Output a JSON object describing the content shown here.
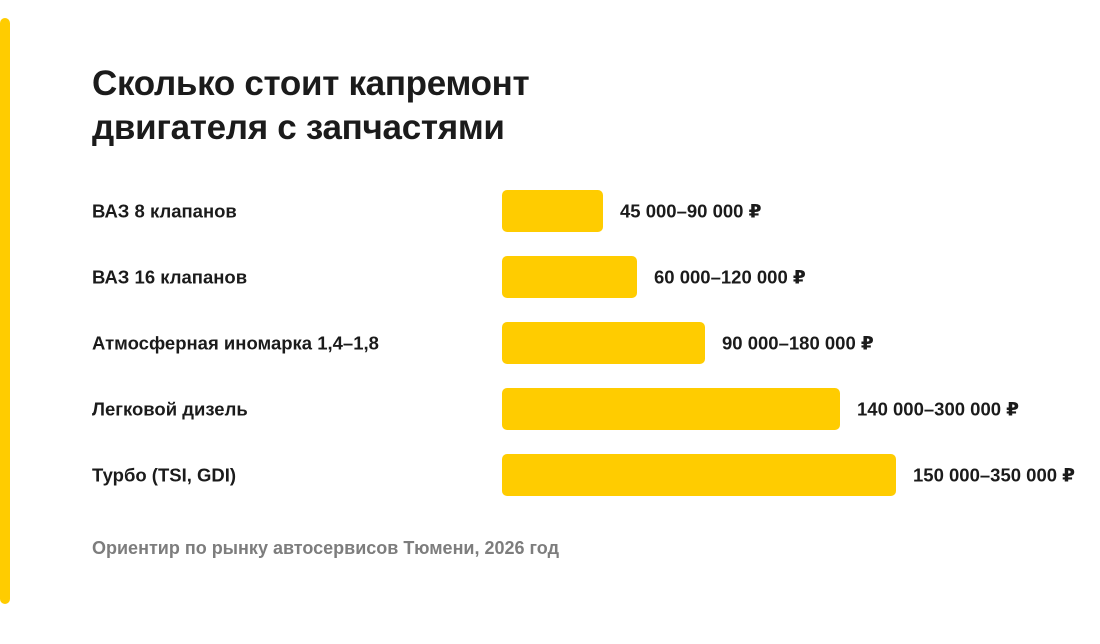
{
  "colors": {
    "accent": "#FFCC00",
    "bar": "#FFCC00",
    "text": "#1B1B1B",
    "muted": "#7D7D7D"
  },
  "title_lines": [
    "Сколько стоит капремонт",
    "двигателя с запчастями"
  ],
  "footnote": "Ориентир по рынку автосервисов Тюмени, 2026 год",
  "chart_data": {
    "type": "bar",
    "orientation": "horizontal",
    "title": "Сколько стоит капремонт двигателя с запчастями",
    "xlabel": "",
    "ylabel": "",
    "grid": false,
    "legend": "none",
    "xlim": [
      0,
      350000
    ],
    "categories": [
      "ВАЗ 8 клапанов",
      "ВАЗ 16 клапанов",
      "Атмосферная иномарка 1,4–1,8",
      "Легковой дизель",
      "Турбо (TSI, GDI)"
    ],
    "ranges": [
      [
        45000,
        90000
      ],
      [
        60000,
        120000
      ],
      [
        90000,
        180000
      ],
      [
        140000,
        300000
      ],
      [
        150000,
        350000
      ]
    ],
    "values": [
      90000,
      120000,
      180000,
      300000,
      350000
    ],
    "data_labels": [
      "45 000–90 000 ₽",
      "60 000–120 000 ₽",
      "90 000–180 000 ₽",
      "140 000–300 000 ₽",
      "150 000–350 000 ₽"
    ]
  }
}
